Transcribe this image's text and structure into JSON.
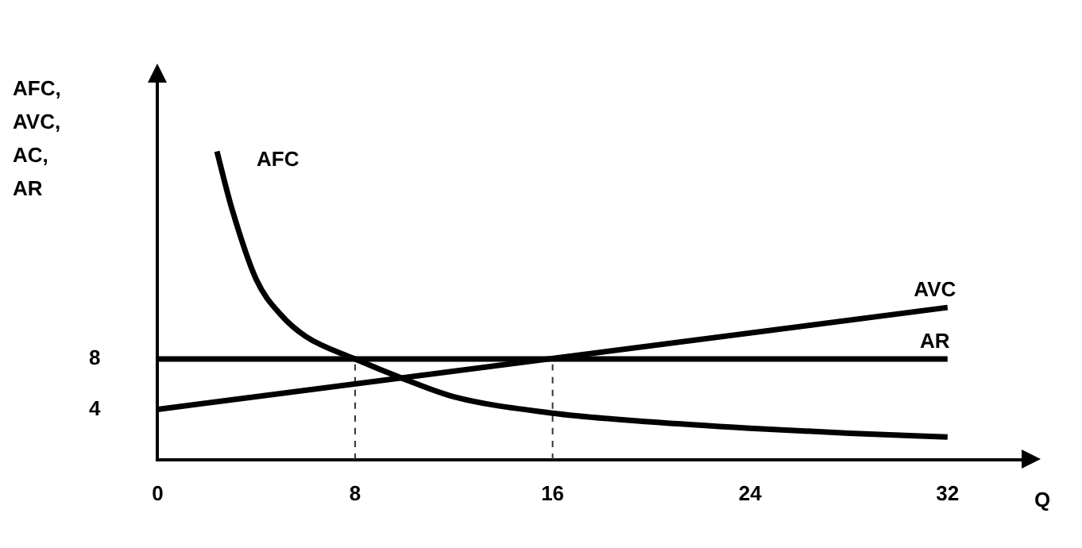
{
  "chart_data": {
    "type": "line",
    "ylabel": "AFC,\nAVC,\nAC,\nAR",
    "xlabel": "Q",
    "xlim": [
      0,
      35
    ],
    "xticks": [
      0,
      8,
      16,
      24,
      32
    ],
    "ylim": [
      0,
      30
    ],
    "yticks": [
      4,
      8
    ],
    "grid": false,
    "legend": false,
    "marker": "none",
    "series": [
      {
        "name": "AFC",
        "color": "#000000",
        "x": [
          2.4,
          3,
          4,
          5,
          6,
          8,
          10,
          12,
          16,
          20,
          24,
          28,
          32
        ],
        "values": [
          24.5,
          20,
          14.3,
          11.5,
          9.8,
          8,
          6.4,
          5,
          3.7,
          3,
          2.5,
          2.1,
          1.8
        ]
      },
      {
        "name": "AVC",
        "color": "#000000",
        "x": [
          0,
          32
        ],
        "values": [
          4,
          12.1
        ]
      },
      {
        "name": "AR",
        "color": "#000000",
        "x": [
          0,
          32
        ],
        "values": [
          8,
          8
        ]
      },
      {
        "color": "#333333",
        "x": [
          8,
          8
        ],
        "values": [
          0,
          8
        ],
        "line_style": "dashed"
      },
      {
        "color": "#333333",
        "x": [
          16,
          16
        ],
        "values": [
          0,
          8
        ],
        "line_style": "dashed"
      }
    ]
  }
}
